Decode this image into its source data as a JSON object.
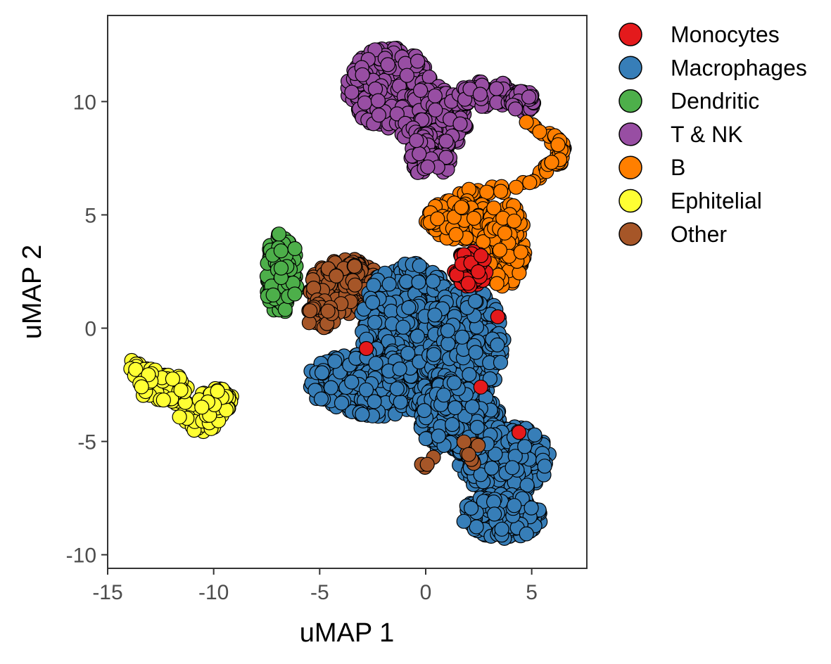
{
  "chart_data": {
    "type": "scatter",
    "title": "",
    "xlabel": "uMAP 1",
    "ylabel": "uMAP 2",
    "xlim": [
      -15,
      7.6
    ],
    "ylim": [
      -10.6,
      13.8
    ],
    "x_ticks": [
      -15,
      -10,
      -5,
      0,
      5
    ],
    "y_ticks": [
      -10,
      -5,
      0,
      5,
      10
    ],
    "x_tick_labels": [
      "-15",
      "-10",
      "-5",
      "0",
      "5"
    ],
    "y_tick_labels": [
      "-10",
      "-5",
      "0",
      "5",
      "10"
    ],
    "grid": false,
    "legend_position": "right",
    "point_outline": "#000000",
    "series": [
      {
        "name": "Monocytes",
        "color": "#e41a1c"
      },
      {
        "name": "Macrophages",
        "color": "#377eb8"
      },
      {
        "name": "Dendritic",
        "color": "#4daf4a"
      },
      {
        "name": "T & NK",
        "color": "#984ea3"
      },
      {
        "name": "B",
        "color": "#ff7f00"
      },
      {
        "name": "Ephitelial",
        "color": "#ffff33"
      },
      {
        "name": "Other",
        "color": "#a65628"
      }
    ]
  }
}
